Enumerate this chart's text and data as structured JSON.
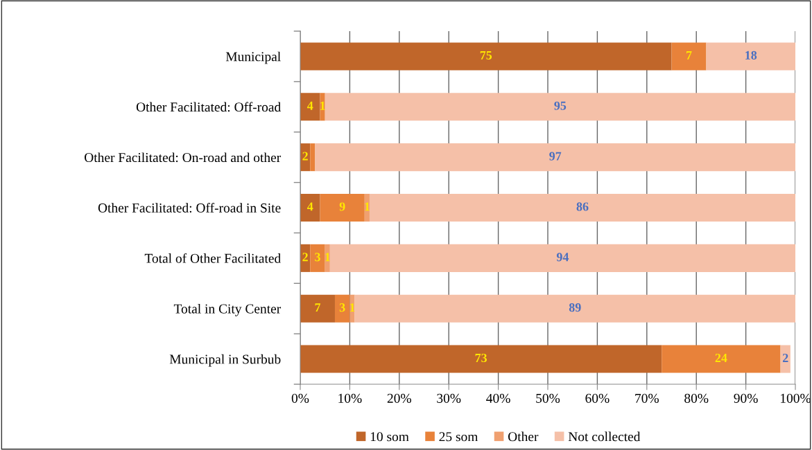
{
  "chart_data": {
    "type": "bar",
    "orientation": "horizontal",
    "stacked": true,
    "categories": [
      "Municipal",
      "Other Facilitated: Off-road",
      "Other Facilitated: On-road and other",
      "Other Facilitated: Off-road in Site",
      "Total of Other Facilitated",
      "Total in City Center",
      "Municipal in Surbub"
    ],
    "series": [
      {
        "name": "10 som",
        "color": "#c0662a",
        "values": [
          75,
          4,
          2,
          4,
          2,
          7,
          73
        ],
        "value_labels": [
          "75",
          "4",
          "2",
          "4",
          "2",
          "7",
          "73"
        ]
      },
      {
        "name": "25 som",
        "color": "#e8823a",
        "values": [
          7,
          1,
          1,
          9,
          3,
          3,
          24
        ],
        "value_labels": [
          "7",
          "1",
          null,
          "9",
          "3",
          "3",
          "24"
        ]
      },
      {
        "name": "Other",
        "color": "#f0a070",
        "values": [
          0,
          0,
          0,
          1,
          1,
          1,
          0
        ],
        "value_labels": [
          null,
          null,
          null,
          "1",
          "1",
          "1",
          null
        ]
      },
      {
        "name": "Not collected",
        "color": "#f5c0a8",
        "values": [
          18,
          95,
          97,
          86,
          94,
          89,
          2
        ],
        "value_labels": [
          "18",
          "95",
          "97",
          "86",
          "94",
          "89",
          "2"
        ]
      }
    ],
    "xlim": [
      0,
      100
    ],
    "xticks": [
      {
        "value": 0,
        "label": "0%"
      },
      {
        "value": 10,
        "label": "10%"
      },
      {
        "value": 20,
        "label": "20%"
      },
      {
        "value": 30,
        "label": "30%"
      },
      {
        "value": 40,
        "label": "40%"
      },
      {
        "value": 50,
        "label": "50%"
      },
      {
        "value": 60,
        "label": "60%"
      },
      {
        "value": 70,
        "label": "70%"
      },
      {
        "value": 80,
        "label": "80%"
      },
      {
        "value": 90,
        "label": "90%"
      },
      {
        "value": 100,
        "label": "100%"
      }
    ],
    "grid": "x",
    "legend": "bottom"
  }
}
